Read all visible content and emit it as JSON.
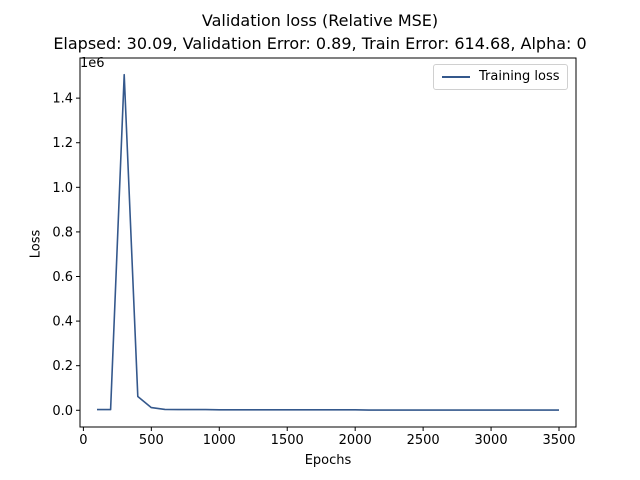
{
  "chart_data": {
    "type": "line",
    "title": "Validation loss (Relative MSE)",
    "subtitle": "Elapsed: 30.09, Validation Error: 0.89, Train Error: 614.68, Alpha: 0",
    "xlabel": "Epochs",
    "ylabel": "Loss",
    "y_offset_label": "1e6",
    "xlim": [
      -25,
      3625
    ],
    "ylim": [
      -0.075,
      1.58
    ],
    "x_ticks": [
      0,
      500,
      1000,
      1500,
      2000,
      2500,
      3000,
      3500
    ],
    "y_ticks": [
      0.0,
      0.2,
      0.4,
      0.6,
      0.8,
      1.0,
      1.2,
      1.4
    ],
    "y_tick_labels": [
      "0.0",
      "0.2",
      "0.4",
      "0.6",
      "0.8",
      "1.0",
      "1.2",
      "1.4"
    ],
    "legend_position": "top-right",
    "grid": false,
    "series": [
      {
        "name": "Training loss",
        "color": "#34588c",
        "x": [
          100,
          200,
          300,
          400,
          500,
          600,
          700,
          800,
          900,
          1000,
          1100,
          1200,
          1300,
          1400,
          1500,
          1600,
          1700,
          1800,
          1900,
          2000,
          2100,
          2200,
          2300,
          2400,
          2500,
          2600,
          2700,
          2800,
          2900,
          3000,
          3100,
          3200,
          3300,
          3400,
          3500
        ],
        "y": [
          0.003,
          0.003,
          1.505,
          0.062,
          0.012,
          0.004,
          0.003,
          0.003,
          0.003,
          0.002,
          0.002,
          0.002,
          0.002,
          0.002,
          0.002,
          0.002,
          0.002,
          0.002,
          0.002,
          0.002,
          0.001,
          0.001,
          0.001,
          0.001,
          0.001,
          0.001,
          0.001,
          0.001,
          0.001,
          0.001,
          0.001,
          0.001,
          0.001,
          0.001,
          0.001
        ]
      }
    ]
  }
}
